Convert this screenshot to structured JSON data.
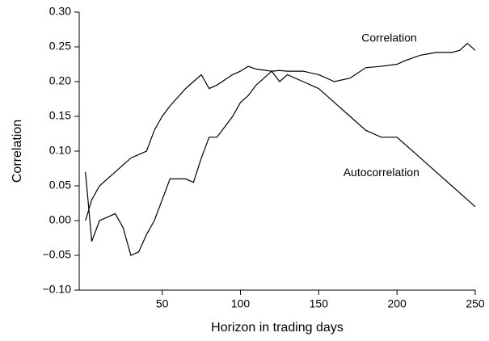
{
  "chart_data": {
    "type": "line",
    "xlabel": "Horizon in trading days",
    "ylabel": "Correlation",
    "x": [
      1,
      5,
      10,
      20,
      25,
      30,
      35,
      40,
      45,
      50,
      55,
      65,
      70,
      75,
      80,
      85,
      95,
      100,
      105,
      110,
      120,
      125,
      130,
      140,
      150,
      160,
      170,
      180,
      190,
      200,
      205,
      215,
      220,
      225,
      235,
      240,
      245,
      250
    ],
    "series": [
      {
        "name": "Correlation",
        "color": "#000000",
        "values": [
          0.0,
          0.03,
          0.05,
          0.07,
          0.08,
          0.09,
          0.095,
          0.1,
          0.13,
          0.15,
          0.165,
          0.19,
          0.2,
          0.21,
          0.19,
          0.195,
          0.21,
          0.215,
          0.222,
          0.218,
          0.215,
          0.216,
          0.215,
          0.215,
          0.21,
          0.2,
          0.205,
          0.22,
          0.222,
          0.225,
          0.23,
          0.238,
          0.24,
          0.242,
          0.242,
          0.245,
          0.255,
          0.245
        ]
      },
      {
        "name": "Autocorrelation",
        "color": "#000000",
        "values": [
          0.07,
          -0.03,
          0.0,
          0.01,
          -0.01,
          -0.05,
          -0.045,
          -0.02,
          0.0,
          0.03,
          0.06,
          0.06,
          0.055,
          0.09,
          0.12,
          0.12,
          0.15,
          0.17,
          0.18,
          0.195,
          0.215,
          0.2,
          0.21,
          0.2,
          0.19,
          0.17,
          0.15,
          0.13,
          0.12,
          0.12,
          0.11,
          0.09,
          0.08,
          0.07,
          0.05,
          0.04,
          0.03,
          0.02
        ]
      }
    ],
    "xlim": [
      -3,
      250
    ],
    "xticks": [
      50,
      100,
      150,
      200,
      250
    ],
    "ylim": [
      -0.1,
      0.3
    ],
    "yticks": [
      {
        "value": -0.1,
        "label": "−0.10"
      },
      {
        "value": -0.05,
        "label": "−0.05"
      },
      {
        "value": 0,
        "label": "0.00"
      },
      {
        "value": 0.05,
        "label": "0.05"
      },
      {
        "value": 0.1,
        "label": "0.10"
      },
      {
        "value": 0.15,
        "label": "0.15"
      },
      {
        "value": 0.2,
        "label": "0.20"
      },
      {
        "value": 0.25,
        "label": "0.25"
      },
      {
        "value": 0.3,
        "label": "0.30"
      }
    ],
    "grid": false
  }
}
